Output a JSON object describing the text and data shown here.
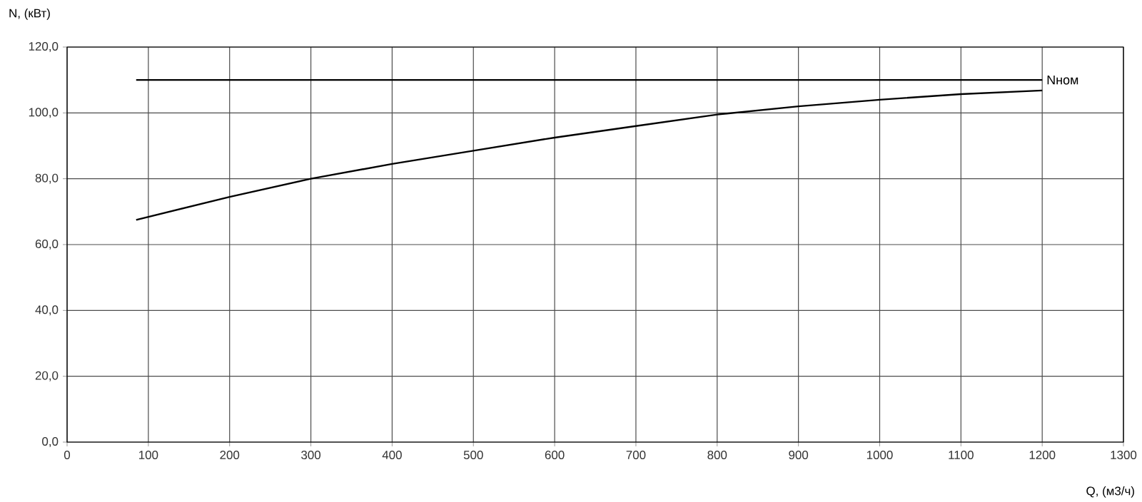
{
  "chart_data": {
    "type": "line",
    "xlabel": "Q, (м3/ч)",
    "ylabel": "N, (кВт)",
    "xlim": [
      0,
      1300
    ],
    "ylim": [
      0,
      120
    ],
    "xticks": [
      0,
      100,
      200,
      300,
      400,
      500,
      600,
      700,
      800,
      900,
      1000,
      1100,
      1200,
      1300
    ],
    "yticks": [
      {
        "value": 0,
        "label": "0,0"
      },
      {
        "value": 20,
        "label": "20,0"
      },
      {
        "value": 40,
        "label": "40,0"
      },
      {
        "value": 60,
        "label": "60,0"
      },
      {
        "value": 80,
        "label": "80,0"
      },
      {
        "value": 100,
        "label": "100,0"
      },
      {
        "value": 120,
        "label": "120,0"
      }
    ],
    "grid": true,
    "marker": "none",
    "line_style": "solid",
    "series": [
      {
        "color": "#000000",
        "x": [
          85,
          200,
          300,
          400,
          500,
          600,
          700,
          800,
          900,
          1000,
          1100,
          1200
        ],
        "values": [
          67.5,
          74.5,
          80,
          84.5,
          88.5,
          92.5,
          96,
          99.5,
          102,
          104,
          105.7,
          106.8
        ]
      },
      {
        "name": "Nном",
        "color": "#000000",
        "x": [
          85,
          1200
        ],
        "values": [
          110,
          110
        ]
      }
    ]
  }
}
